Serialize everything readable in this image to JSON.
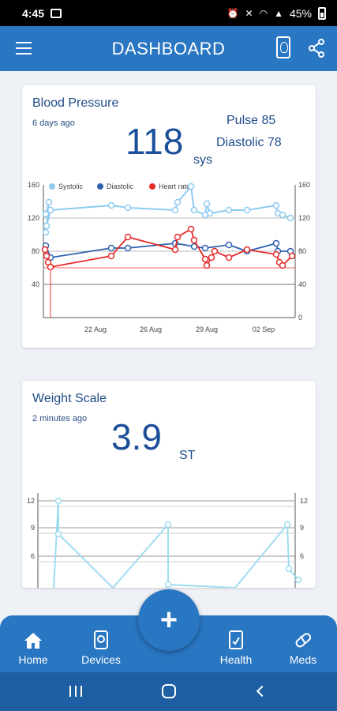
{
  "status_bar": {
    "time": "4:45",
    "battery": "45%"
  },
  "app_bar": {
    "title": "DASHBOARD"
  },
  "blood_pressure": {
    "title": "Blood Pressure",
    "subtitle": "6 days ago",
    "value": "118",
    "unit": "sys",
    "pulse": "Pulse 85",
    "diastolic": "Diastolic 78",
    "chart_data": {
      "type": "line",
      "series": [
        {
          "name": "Systolic",
          "color": "#8ecbf0"
        },
        {
          "name": "Diastolic",
          "color": "#2f62b0"
        },
        {
          "name": "Heart rate",
          "color": "#e62a2a"
        }
      ],
      "x_ticks": [
        "22 Aug",
        "26 Aug",
        "29 Aug",
        "02 Sep"
      ],
      "y_left_ticks": [
        "160",
        "120",
        "80",
        "40"
      ],
      "y_right_ticks": [
        "160",
        "120",
        "80",
        "40",
        "0"
      ],
      "ylim": [
        0,
        160
      ],
      "grid": true,
      "legend": "top-left"
    }
  },
  "weight": {
    "title": "Weight Scale",
    "subtitle": "2 minutes ago",
    "value": "3.9",
    "unit": "ST",
    "chart_data": {
      "type": "line",
      "y_left_ticks": [
        "12",
        "9",
        "6"
      ],
      "y_right_ticks": [
        "12",
        "9",
        "6"
      ],
      "color": "#9edcf0",
      "grid": true
    }
  },
  "nav": {
    "home": "Home",
    "devices": "Devices",
    "add": "+",
    "health": "Health",
    "meds": "Meds"
  }
}
